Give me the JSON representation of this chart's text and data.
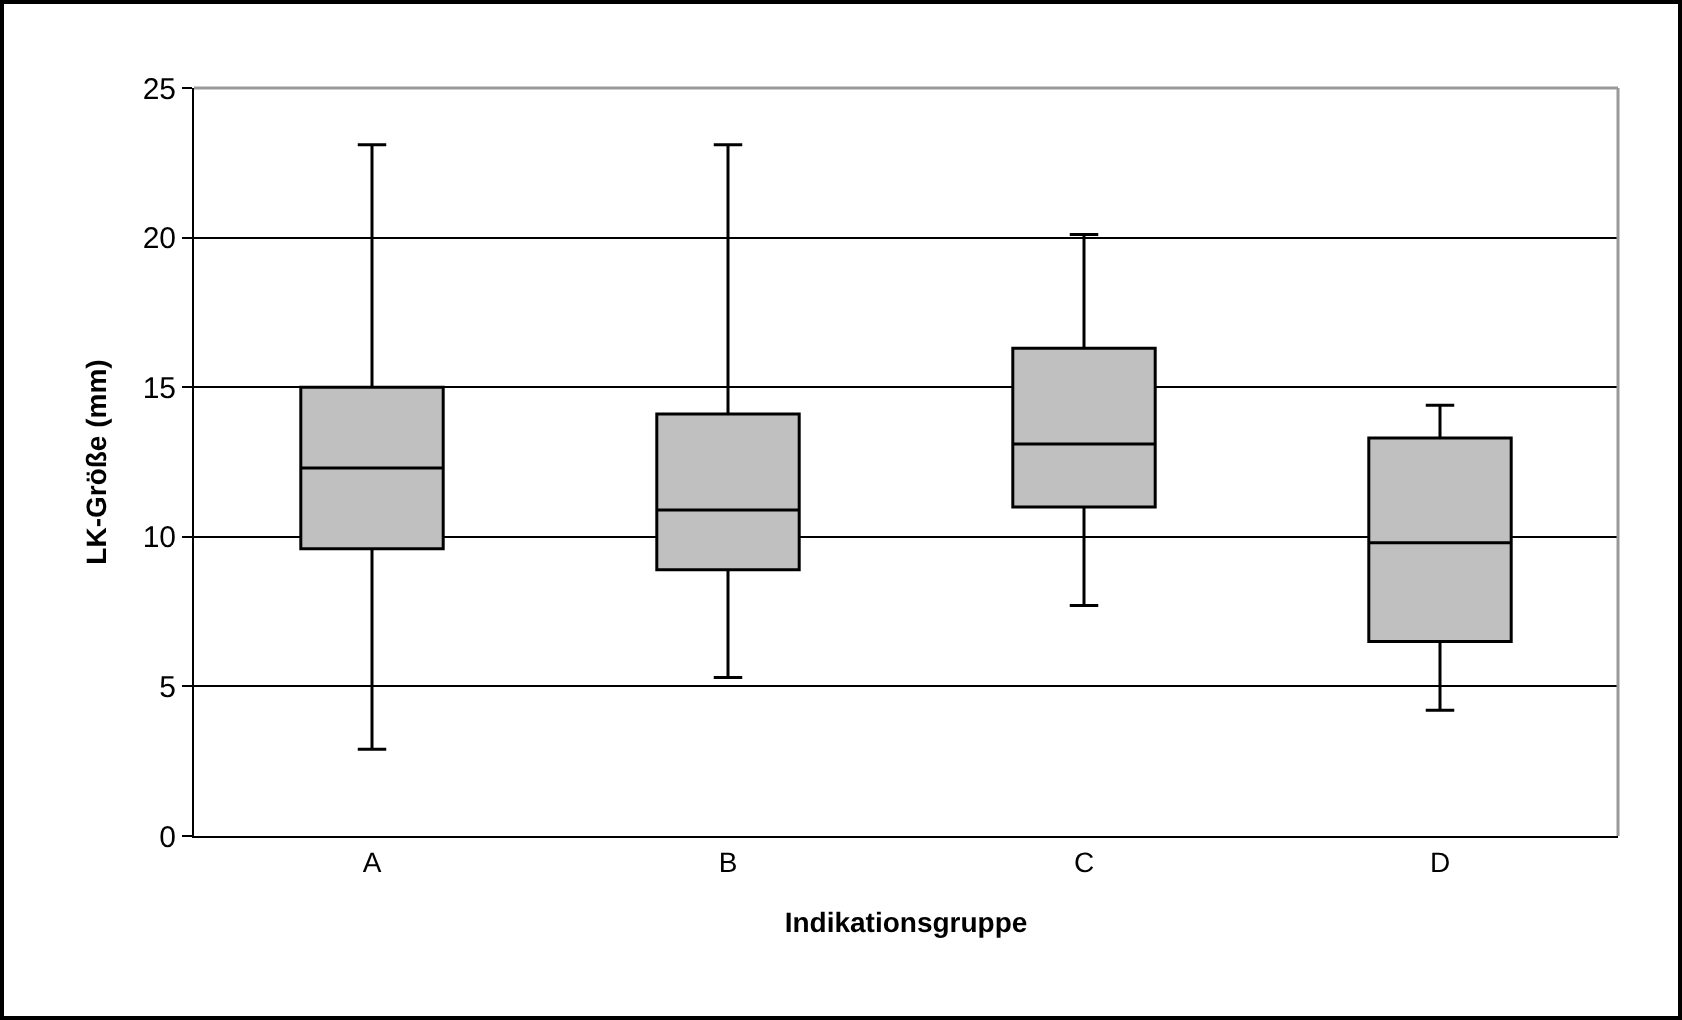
{
  "chart_data": {
    "type": "box",
    "xlabel": "Indikationsgruppe",
    "ylabel": "LK-Größe (mm)",
    "categories": [
      "A",
      "B",
      "C",
      "D"
    ],
    "boxes": [
      {
        "low": 2.9,
        "q1": 9.6,
        "median": 12.3,
        "q3": 15.0,
        "high": 23.1
      },
      {
        "low": 5.3,
        "q1": 8.9,
        "median": 10.9,
        "q3": 14.1,
        "high": 23.1
      },
      {
        "low": 7.7,
        "q1": 11.0,
        "median": 13.1,
        "q3": 16.3,
        "high": 20.1
      },
      {
        "low": 4.2,
        "q1": 6.5,
        "median": 9.8,
        "q3": 13.3,
        "high": 14.4
      }
    ],
    "color": "#c0c0c0",
    "ylim": [
      0,
      25
    ],
    "yticks": [
      0,
      5,
      10,
      15,
      20,
      25
    ],
    "grid": "y",
    "legend": false
  }
}
